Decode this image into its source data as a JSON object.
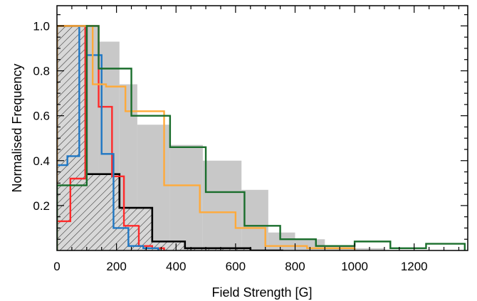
{
  "chart_data": {
    "type": "histogram",
    "title": "",
    "xlabel": "Field Strength [G]",
    "ylabel": "Normalised Frequency",
    "xlim": [
      0,
      1380
    ],
    "ylim": [
      0,
      1.09
    ],
    "x_ticks": [
      0,
      200,
      400,
      600,
      800,
      1000,
      1200
    ],
    "y_ticks": [
      0.2,
      0.4,
      0.6,
      0.8,
      1.0
    ],
    "x_tick_labels": [
      "0",
      "200",
      "400",
      "600",
      "800",
      "1000",
      "1200"
    ],
    "y_tick_labels": [
      "0.2",
      "0.4",
      "0.6",
      "0.8",
      "1.0"
    ],
    "grid": false,
    "series": [
      {
        "style": "filled",
        "color": "#c8c8c8",
        "edges": [
          0,
          75,
          140,
          210,
          270,
          380,
          490,
          620,
          710,
          800,
          900,
          1000,
          1100,
          1380
        ],
        "values": [
          0.32,
          1.0,
          0.93,
          0.74,
          0.56,
          0.47,
          0.4,
          0.27,
          0.08,
          0.05,
          0.02,
          0.01,
          0.0
        ]
      },
      {
        "style": "hatched",
        "color": "#000000",
        "edges": [
          0,
          100,
          210,
          320,
          430,
          540,
          650,
          760
        ],
        "values": [
          1.0,
          0.34,
          0.19,
          0.04,
          0.01,
          0.01,
          0.0
        ]
      },
      {
        "style": "step",
        "color": "#ff2a2a",
        "edges": [
          0,
          45,
          95,
          140,
          185,
          225,
          275,
          320,
          360
        ],
        "values": [
          0.13,
          0.32,
          1.0,
          0.64,
          0.33,
          0.11,
          0.02,
          0.01
        ]
      },
      {
        "style": "step",
        "color": "#1f77c4",
        "edges": [
          0,
          35,
          75,
          100,
          150,
          190,
          240,
          290,
          340
        ],
        "values": [
          0.38,
          0.42,
          1.0,
          0.87,
          0.43,
          0.1,
          0.02,
          0.01
        ]
      },
      {
        "style": "step",
        "color": "#ffaa3a",
        "edges": [
          0,
          120,
          165,
          230,
          360,
          480,
          600,
          700,
          840,
          1000
        ],
        "values": [
          1.0,
          0.74,
          0.73,
          0.62,
          0.29,
          0.17,
          0.1,
          0.02,
          0.01
        ]
      },
      {
        "style": "step",
        "color": "#1a6e2c",
        "edges": [
          0,
          100,
          140,
          250,
          380,
          500,
          630,
          750,
          870,
          1000,
          1120,
          1240,
          1370
        ],
        "values": [
          0.29,
          1.0,
          0.81,
          0.6,
          0.46,
          0.26,
          0.11,
          0.05,
          0.02,
          0.04,
          0.01,
          0.03
        ]
      }
    ]
  }
}
